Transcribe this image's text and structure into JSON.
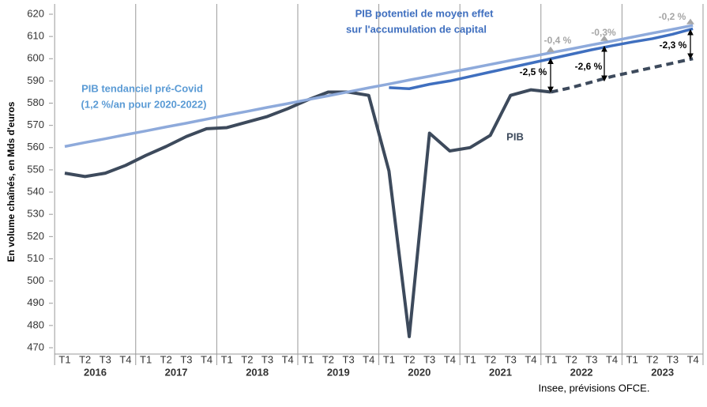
{
  "chart_data": {
    "type": "line",
    "categories": [
      "T1",
      "T2",
      "T3",
      "T4",
      "T1",
      "T2",
      "T3",
      "T4",
      "T1",
      "T2",
      "T3",
      "T4",
      "T1",
      "T2",
      "T3",
      "T4",
      "T1",
      "T2",
      "T3",
      "T4",
      "T1",
      "T2",
      "T3",
      "T4",
      "T1",
      "T2",
      "T3",
      "T4",
      "T1",
      "T2",
      "T3",
      "T4"
    ],
    "years": [
      "2016",
      "2017",
      "2018",
      "2019",
      "2020",
      "2021",
      "2022",
      "2023"
    ],
    "ylabel": "En volume chaînés, en Mds d'euros",
    "source": "Insee, prévisions OFCE.",
    "ylim": [
      470,
      620
    ],
    "yticks": [
      470,
      480,
      490,
      500,
      510,
      520,
      530,
      540,
      550,
      560,
      570,
      580,
      590,
      600,
      610,
      620
    ],
    "series": [
      {
        "name": "PIB",
        "color": "#3d4a5c",
        "values": [
          548.5,
          547,
          548.5,
          552,
          556.5,
          560.5,
          565,
          568.5,
          569,
          571.5,
          574,
          577.5,
          581.5,
          585,
          585,
          583.5,
          549.5,
          475,
          566.5,
          558.5,
          560,
          565.5,
          583.5,
          586,
          585,
          null,
          null,
          null,
          null,
          null,
          null,
          null
        ]
      },
      {
        "color": "#3d4a5c",
        "dashed": true,
        "values": [
          null,
          null,
          null,
          null,
          null,
          null,
          null,
          null,
          null,
          null,
          null,
          null,
          null,
          null,
          null,
          null,
          null,
          null,
          null,
          null,
          null,
          null,
          null,
          null,
          585,
          587,
          589.5,
          592,
          594,
          596,
          598,
          600
        ]
      },
      {
        "color": "#8eaadb",
        "values": [
          560.5,
          562.3,
          564.0,
          565.8,
          567.5,
          569.3,
          571.0,
          572.8,
          574.6,
          576.3,
          578.1,
          579.8,
          581.6,
          583.3,
          585.1,
          586.9,
          588.6,
          590.4,
          592.1,
          593.9,
          595.6,
          597.4,
          599.2,
          600.9,
          602.7,
          604.4,
          606.2,
          607.9,
          609.7,
          611.5,
          613.2,
          615.0
        ]
      },
      {
        "color": "#3f6fbf",
        "values": [
          null,
          null,
          null,
          null,
          null,
          null,
          null,
          null,
          null,
          null,
          null,
          null,
          null,
          null,
          null,
          null,
          587,
          586.5,
          588.5,
          590,
          592,
          594,
          596,
          598,
          600,
          602,
          604,
          605.8,
          607.5,
          609,
          611,
          613.5
        ]
      }
    ],
    "annotations": [
      "PIB potentiel de moyen effet",
      "sur l'accumulation de capital",
      "PIB  tendanciel  pré-Covid",
      "(1,2 %/an  pour 2020-2022)",
      "PIB",
      "-2,5 %",
      "-2,6 %",
      "-2,3 %",
      "-0,4 %",
      "-0,3%",
      "-0,2 %"
    ]
  }
}
